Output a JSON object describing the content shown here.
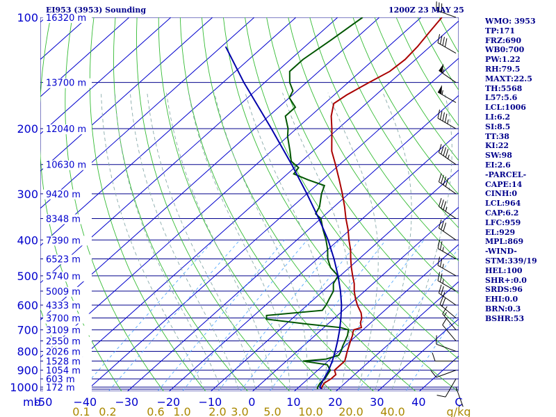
{
  "header": {
    "station_label": "EI953 (3953) Sounding",
    "valid_time": "1200Z 23 MAY 25"
  },
  "indices": [
    "WMO: 3953",
    "TP:171",
    "FRZ:690",
    "WB0:700",
    "PW:1.22",
    "RH:79.5",
    "MAXT:22.5",
    "TH:5568",
    "L57:5.6",
    "LCL:1006",
    "LI:6.2",
    "SI:8.5",
    "TT:38",
    "KI:22",
    "SW:98",
    "EI:2.6",
    "-PARCEL-",
    "CAPE:14",
    "CINH:0",
    "LCL:964",
    "CAP:6.2",
    "LFC:959",
    "EL:929",
    "MPL:869",
    "-WIND-",
    "STM:339/19",
    "HEL:100",
    "SHR+:0.0",
    "SRDS:96",
    "EHI:0.0",
    "BRN:0.3",
    "BSHR:53"
  ],
  "colors": {
    "isobar": "#00008b",
    "isotherm": "#0000cd",
    "dry_adiabat": "#33bb33",
    "moist_adiabat": "#88aaaa",
    "mixing_ratio": "#55aaff",
    "temperature": "#aa0000",
    "dewpoint": "#005500",
    "parcel": "#0000aa",
    "axis_text": "#0000cd",
    "mixing_ratio_text": "#aa8800"
  },
  "chart_data": {
    "type": "line",
    "subtype": "skew-t log-p sounding",
    "x_axis_unit_label": "mb",
    "y_unit": "mb",
    "ylim": [
      1000,
      100
    ],
    "xlim": [
      -50,
      50
    ],
    "pressure_ticks": [
      100,
      200,
      300,
      400,
      500,
      600,
      700,
      800,
      900,
      1000
    ],
    "temperature_ticks": [
      -50,
      -40,
      -30,
      -20,
      -10,
      0,
      10,
      20,
      30,
      40
    ],
    "temperature_tick_labels": [
      "-50",
      "−40",
      "−30",
      "−20",
      "−10",
      "0",
      "10",
      "20",
      "30",
      "40"
    ],
    "trailing_x_label": "C",
    "mixing_ratio_ticks": [
      0.1,
      0.2,
      0.6,
      1.0,
      2.0,
      3.0,
      5.0,
      10.0,
      20.0,
      40.0
    ],
    "mixing_ratio_tick_labels": [
      "0.1",
      "0.2",
      "0.6",
      "1.0",
      "2.0",
      "3.0",
      "5.0",
      "10.0",
      "20.0",
      "40.0"
    ],
    "mixing_ratio_unit": "g/kg",
    "height_labels": [
      {
        "p": 100,
        "label": "16320 m"
      },
      {
        "p": 150,
        "label": "13700 m"
      },
      {
        "p": 200,
        "label": "12040 m"
      },
      {
        "p": 250,
        "label": "10630 m"
      },
      {
        "p": 300,
        "label": "9420 m"
      },
      {
        "p": 350,
        "label": "8348 m"
      },
      {
        "p": 400,
        "label": "7390 m"
      },
      {
        "p": 450,
        "label": "6523 m"
      },
      {
        "p": 500,
        "label": "5740 m"
      },
      {
        "p": 550,
        "label": "5009 m"
      },
      {
        "p": 600,
        "label": "4333 m"
      },
      {
        "p": 650,
        "label": "3700 m"
      },
      {
        "p": 700,
        "label": "3109 m"
      },
      {
        "p": 750,
        "label": "2550 m"
      },
      {
        "p": 800,
        "label": "2026 m"
      },
      {
        "p": 850,
        "label": "1528 m"
      },
      {
        "p": 900,
        "label": "1054 m"
      },
      {
        "p": 950,
        "label": "603 m"
      },
      {
        "p": 1000,
        "label": "172 m"
      }
    ],
    "series": [
      {
        "key": "temperature",
        "points": [
          [
            1013,
            16.0
          ],
          [
            1000,
            15.5
          ],
          [
            975,
            15.0
          ],
          [
            950,
            15.5
          ],
          [
            925,
            15.5
          ],
          [
            900,
            14.0
          ],
          [
            875,
            14.0
          ],
          [
            850,
            14.0
          ],
          [
            825,
            13.0
          ],
          [
            800,
            12.0
          ],
          [
            775,
            11.0
          ],
          [
            750,
            10.0
          ],
          [
            725,
            9.0
          ],
          [
            710,
            8.2
          ],
          [
            700,
            7.8
          ],
          [
            690,
            9.0
          ],
          [
            670,
            7.5
          ],
          [
            650,
            6.5
          ],
          [
            630,
            5.0
          ],
          [
            600,
            2.0
          ],
          [
            575,
            -0.3
          ],
          [
            550,
            -2.5
          ],
          [
            525,
            -4.5
          ],
          [
            500,
            -7.0
          ],
          [
            475,
            -9.5
          ],
          [
            450,
            -12.0
          ],
          [
            425,
            -14.5
          ],
          [
            400,
            -17.5
          ],
          [
            375,
            -20.5
          ],
          [
            350,
            -24.0
          ],
          [
            325,
            -27.5
          ],
          [
            300,
            -31.5
          ],
          [
            275,
            -36.0
          ],
          [
            250,
            -41.0
          ],
          [
            230,
            -45.5
          ],
          [
            200,
            -51.5
          ],
          [
            185,
            -55.0
          ],
          [
            171,
            -57.8
          ],
          [
            162,
            -57.0
          ],
          [
            150,
            -55.0
          ],
          [
            140,
            -53.0
          ],
          [
            130,
            -52.5
          ],
          [
            120,
            -53.0
          ],
          [
            110,
            -54.0
          ],
          [
            100,
            -55.0
          ]
        ]
      },
      {
        "key": "dewpoint",
        "points": [
          [
            1013,
            15.0
          ],
          [
            1000,
            14.5
          ],
          [
            975,
            14.0
          ],
          [
            950,
            14.0
          ],
          [
            925,
            13.5
          ],
          [
            900,
            13.0
          ],
          [
            870,
            10.8
          ],
          [
            850,
            4.0
          ],
          [
            840,
            9.0
          ],
          [
            820,
            11.0
          ],
          [
            800,
            10.5
          ],
          [
            775,
            9.5
          ],
          [
            750,
            8.7
          ],
          [
            725,
            7.8
          ],
          [
            700,
            6.5
          ],
          [
            690,
            4.0
          ],
          [
            675,
            -5.0
          ],
          [
            655,
            -16.0
          ],
          [
            640,
            -17.0
          ],
          [
            620,
            -5.0
          ],
          [
            600,
            -5.5
          ],
          [
            575,
            -6.5
          ],
          [
            550,
            -7.5
          ],
          [
            525,
            -9.5
          ],
          [
            500,
            -10.5
          ],
          [
            475,
            -14.5
          ],
          [
            450,
            -17.5
          ],
          [
            425,
            -20.0
          ],
          [
            400,
            -23.0
          ],
          [
            375,
            -26.5
          ],
          [
            350,
            -30.0
          ],
          [
            340,
            -32.5
          ],
          [
            325,
            -33.5
          ],
          [
            300,
            -36.5
          ],
          [
            285,
            -38.0
          ],
          [
            275,
            -43.5
          ],
          [
            265,
            -48.5
          ],
          [
            255,
            -49.0
          ],
          [
            245,
            -52.5
          ],
          [
            230,
            -55.5
          ],
          [
            210,
            -60.0
          ],
          [
            200,
            -62.0
          ],
          [
            185,
            -66.0
          ],
          [
            175,
            -66.0
          ],
          [
            165,
            -70.0
          ],
          [
            158,
            -71.0
          ],
          [
            150,
            -74.0
          ],
          [
            140,
            -77.0
          ],
          [
            130,
            -77.0
          ],
          [
            115,
            -75.5
          ],
          [
            100,
            -74.0
          ]
        ]
      },
      {
        "key": "parcel",
        "points": [
          [
            1013,
            16.0
          ],
          [
            1006,
            15.5
          ],
          [
            1000,
            15.0
          ],
          [
            960,
            14.0
          ],
          [
            900,
            12.6
          ],
          [
            850,
            11.0
          ],
          [
            800,
            9.1
          ],
          [
            750,
            6.9
          ],
          [
            700,
            4.4
          ],
          [
            650,
            1.5
          ],
          [
            600,
            -1.8
          ],
          [
            550,
            -5.8
          ],
          [
            500,
            -10.5
          ],
          [
            450,
            -16.0
          ],
          [
            400,
            -22.5
          ],
          [
            350,
            -30.5
          ],
          [
            300,
            -40.0
          ],
          [
            250,
            -51.5
          ],
          [
            200,
            -66.0
          ],
          [
            150,
            -85.0
          ],
          [
            120,
            -99.0
          ]
        ]
      }
    ],
    "wind_barbs": [
      {
        "p": 1000,
        "dir": 160,
        "spd": 5
      },
      {
        "p": 950,
        "dir": 210,
        "spd": 10
      },
      {
        "p": 900,
        "dir": 250,
        "spd": 10
      },
      {
        "p": 850,
        "dir": 270,
        "spd": 10
      },
      {
        "p": 800,
        "dir": 290,
        "spd": 10
      },
      {
        "p": 750,
        "dir": 320,
        "spd": 10
      },
      {
        "p": 700,
        "dir": 320,
        "spd": 15
      },
      {
        "p": 650,
        "dir": 310,
        "spd": 20
      },
      {
        "p": 600,
        "dir": 305,
        "spd": 25
      },
      {
        "p": 550,
        "dir": 300,
        "spd": 25
      },
      {
        "p": 500,
        "dir": 300,
        "spd": 25
      },
      {
        "p": 450,
        "dir": 300,
        "spd": 25
      },
      {
        "p": 400,
        "dir": 305,
        "spd": 30
      },
      {
        "p": 350,
        "dir": 305,
        "spd": 35
      },
      {
        "p": 300,
        "dir": 305,
        "spd": 40
      },
      {
        "p": 250,
        "dir": 305,
        "spd": 45
      },
      {
        "p": 200,
        "dir": 300,
        "spd": 45
      },
      {
        "p": 170,
        "dir": 300,
        "spd": 55
      },
      {
        "p": 150,
        "dir": 305,
        "spd": 55
      },
      {
        "p": 125,
        "dir": 300,
        "spd": 40
      },
      {
        "p": 100,
        "dir": 290,
        "spd": 30
      }
    ]
  }
}
